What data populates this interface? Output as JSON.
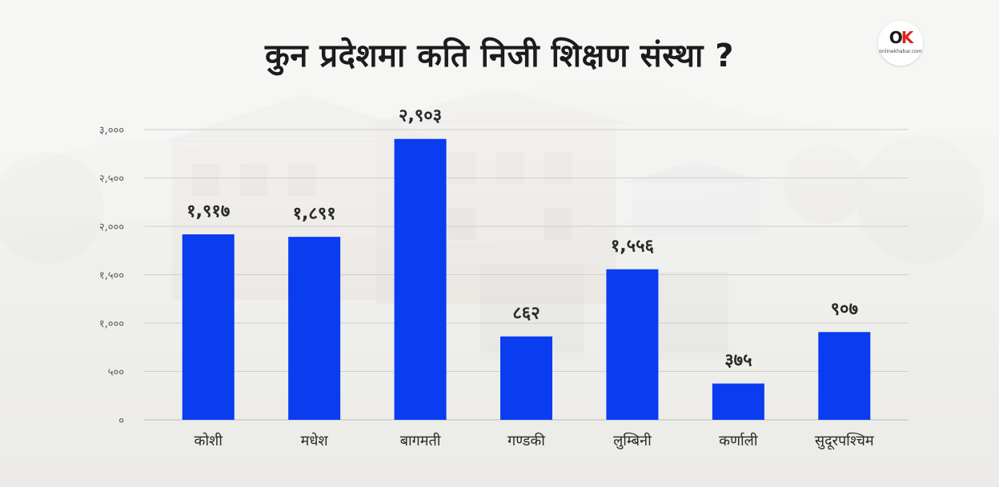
{
  "title": "कुन प्रदेशमा कति निजी शिक्षण संस्था ?",
  "logo": {
    "mark_o": "O",
    "mark_k": "K",
    "subtext": "onlinekhabar.com",
    "accent": "#e0221b"
  },
  "colors": {
    "bar": "#0a3cf0",
    "grid": "#cfcfcf",
    "axis": "#bdbdbd"
  },
  "chart_data": {
    "type": "bar",
    "categories": [
      "कोशी",
      "मधेश",
      "बागमती",
      "गण्डकी",
      "लुम्बिनी",
      "कर्णाली",
      "सुदूरपश्चिम"
    ],
    "values": [
      1917,
      1891,
      2903,
      862,
      1556,
      375,
      907
    ],
    "value_labels": [
      "१,९१७",
      "१,८९१",
      "२,९०३",
      "८६२",
      "१,५५६",
      "३७५",
      "९०७"
    ],
    "ylim": [
      0,
      3000
    ],
    "yticks": [
      0,
      500,
      1000,
      1500,
      2000,
      2500,
      3000
    ],
    "ytick_labels": [
      "०",
      "५००",
      "१,०००",
      "१,५००",
      "२,०००",
      "२,५००",
      "३,०००"
    ],
    "grid": true,
    "legend": false
  }
}
